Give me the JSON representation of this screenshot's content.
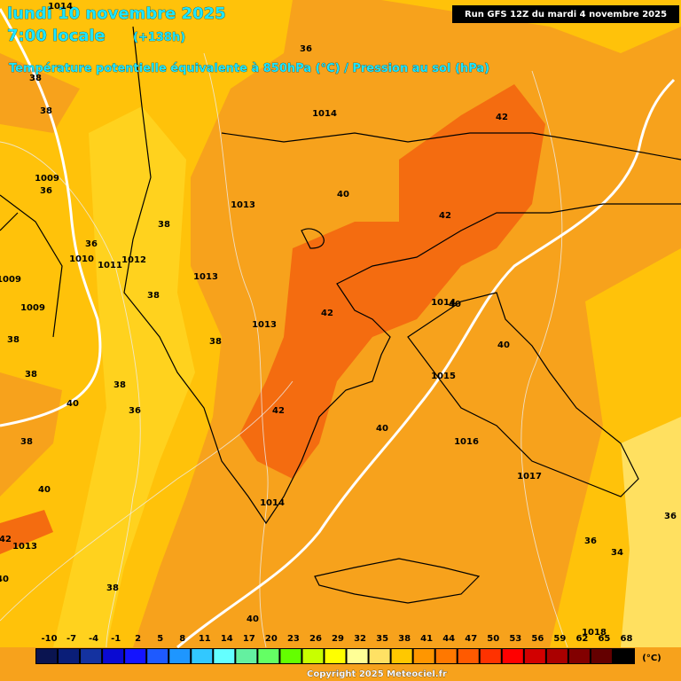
{
  "header": {
    "date": "lundi 10 novembre 2025",
    "time": "7:00 locale",
    "lead": "(+138h)",
    "run": "Run GFS 12Z du mardi 4 novembre 2025",
    "parameter": "Température potentielle équivalente à 850hPa (°C) / Pression au sol (hPa)"
  },
  "map": {
    "temperature_labels": [
      "36",
      "38",
      "36",
      "38",
      "36",
      "38",
      "38",
      "38",
      "38",
      "38",
      "36",
      "40",
      "38",
      "40",
      "40",
      "38",
      "40",
      "40",
      "42",
      "42",
      "42",
      "40",
      "40",
      "42",
      "40",
      "36",
      "34",
      "36",
      "42",
      "38"
    ],
    "pressure_labels": [
      "1014",
      "1014",
      "1009",
      "1013",
      "1010",
      "1011",
      "1012",
      "1013",
      "1009",
      "1009",
      "1013",
      "1014",
      "1015",
      "1016",
      "1017",
      "1014",
      "1013",
      "1018"
    ]
  },
  "legend": {
    "unit": "(°C)",
    "ticks": [
      -10,
      -7,
      -4,
      -1,
      2,
      5,
      8,
      11,
      14,
      17,
      20,
      23,
      26,
      29,
      32,
      35,
      38,
      41,
      44,
      47,
      50,
      53,
      56,
      59,
      62,
      65,
      68
    ],
    "colors": [
      "#0a1450",
      "#0a1e78",
      "#1432a0",
      "#0a0ad2",
      "#1414ff",
      "#1e5aff",
      "#1e96ff",
      "#32c8ff",
      "#64ffff",
      "#64f0a0",
      "#64ff64",
      "#64ff00",
      "#c8ff00",
      "#ffff00",
      "#ffff96",
      "#ffe164",
      "#ffc800",
      "#ff9600",
      "#ff7800",
      "#ff5a00",
      "#ff3200",
      "#ff0000",
      "#d20000",
      "#aa0000",
      "#820000",
      "#640000",
      "#000000"
    ]
  },
  "footer": {
    "copyright": "Copyright 2025 Meteociel.fr"
  }
}
